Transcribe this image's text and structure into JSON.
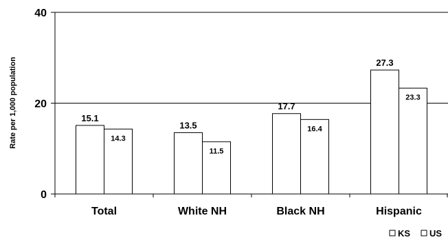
{
  "chart_data": {
    "type": "bar",
    "title": "",
    "xlabel": "",
    "ylabel": "Rate per 1,000 population",
    "ylim": [
      0,
      40
    ],
    "yticks": [
      0,
      20,
      40
    ],
    "grid": true,
    "legend_position": "bottom-right",
    "categories": [
      "Total",
      "White NH",
      "Black NH",
      "Hispanic"
    ],
    "series": [
      {
        "name": "KS",
        "values": [
          15.1,
          13.5,
          17.7,
          27.3
        ],
        "labels": [
          "15.1",
          "13.5",
          "17.7",
          "27.3"
        ],
        "color": "#ffffff"
      },
      {
        "name": "US",
        "values": [
          14.3,
          11.5,
          16.4,
          23.3
        ],
        "labels": [
          "14.3",
          "11.5",
          "16.4",
          "23.3"
        ],
        "color": "#ffffff"
      }
    ],
    "bar_outline_color": "#000000",
    "gridline_color": "#000000"
  }
}
